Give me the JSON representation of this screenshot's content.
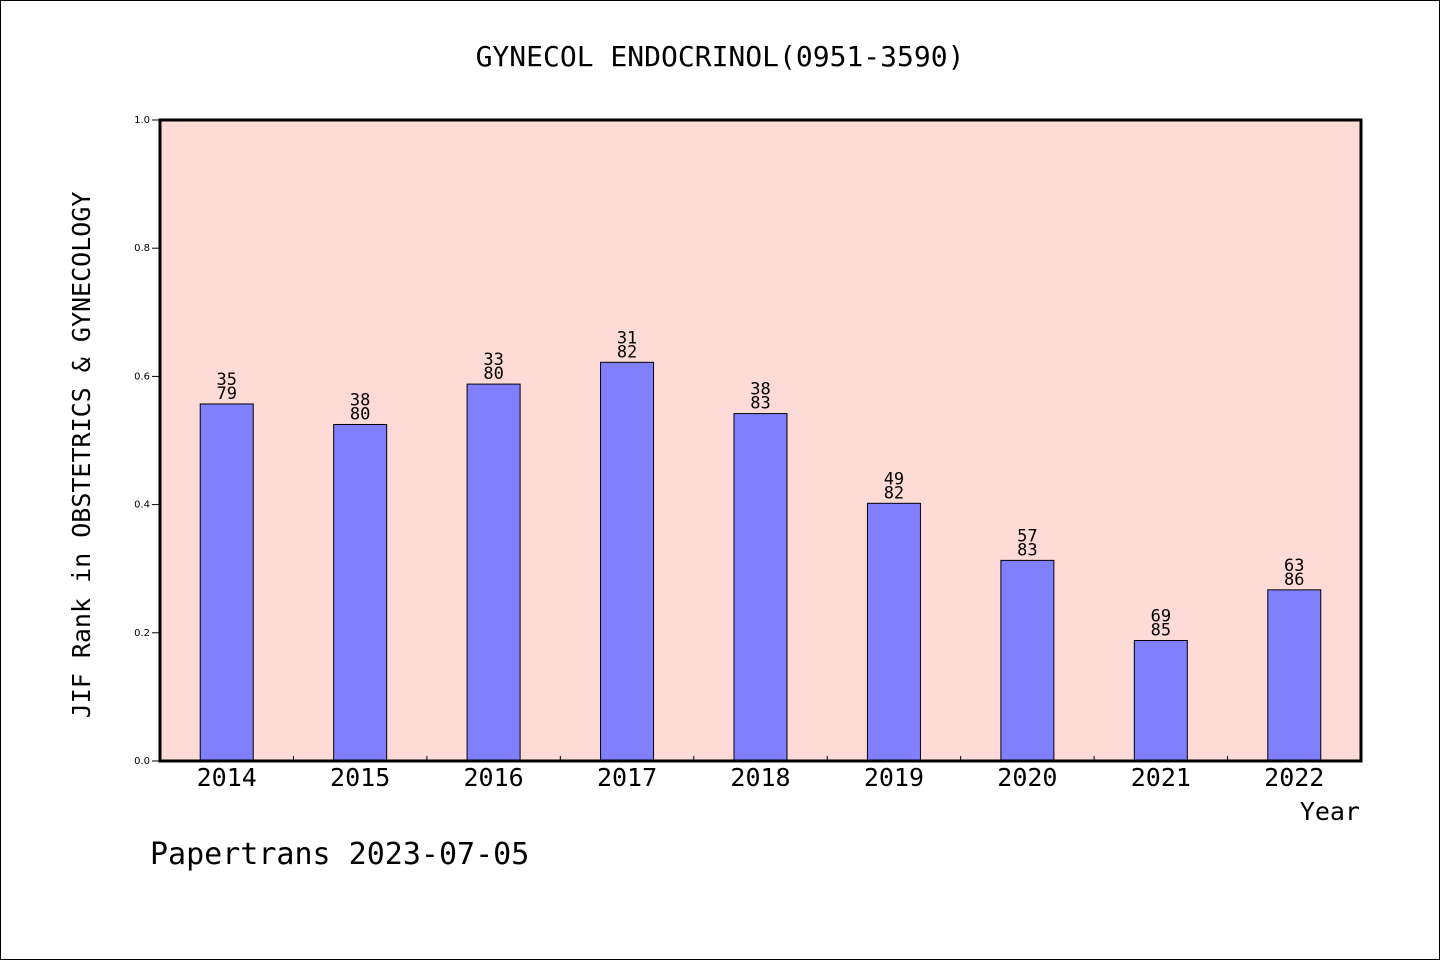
{
  "chart_data": {
    "type": "bar",
    "title": "GYNECOL ENDOCRINOL(0951-3590)",
    "xlabel": "Year",
    "ylabel": "JIF Rank in OBSTETRICS & GYNECOLOGY",
    "ylim": [
      0,
      1.0
    ],
    "yticks": [
      "0.0",
      "0.2",
      "0.4",
      "0.6",
      "0.8",
      "1.0"
    ],
    "categories": [
      "2014",
      "2015",
      "2016",
      "2017",
      "2018",
      "2019",
      "2020",
      "2021",
      "2022"
    ],
    "values": [
      0.557,
      0.525,
      0.588,
      0.622,
      0.542,
      0.402,
      0.313,
      0.188,
      0.267
    ],
    "rank": [
      "35",
      "38",
      "33",
      "31",
      "38",
      "49",
      "57",
      "69",
      "63"
    ],
    "total": [
      "79",
      "80",
      "80",
      "82",
      "83",
      "82",
      "83",
      "85",
      "86"
    ],
    "grid": false,
    "colors": {
      "plot_bg": "#FFDBD8",
      "bar": "#8080FF"
    }
  },
  "footer": {
    "credit": "Papertrans 2023-07-05"
  }
}
